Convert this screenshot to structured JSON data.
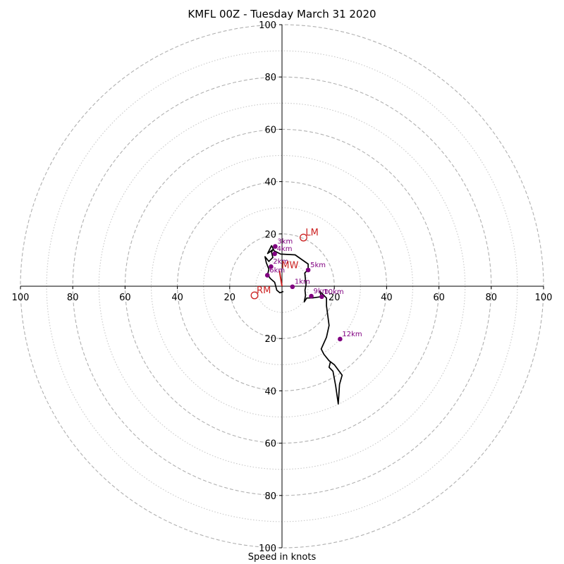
{
  "chart_data": {
    "type": "hodograph",
    "title": "KMFL 00Z - Tuesday March 31 2020",
    "xlabel": "Speed in knots",
    "ring_ticks": [
      "20",
      "40",
      "60",
      "80",
      "100"
    ],
    "xlim": [
      -100,
      100
    ],
    "ylim": [
      -100,
      100
    ],
    "grid": true,
    "hodograph_trace": [
      [
        0.5,
        -2
      ],
      [
        -0.8,
        -2.5
      ],
      [
        -2,
        -1.5
      ],
      [
        -2.8,
        1.5
      ],
      [
        -4.5,
        3
      ],
      [
        -5.5,
        4.5
      ],
      [
        -5,
        6.5
      ],
      [
        -6,
        9
      ],
      [
        -6.5,
        11.3
      ],
      [
        -5,
        9.5
      ],
      [
        -3.5,
        11
      ],
      [
        -4,
        13
      ],
      [
        -3.5,
        14
      ],
      [
        -5.5,
        12.5
      ],
      [
        -4,
        15.5
      ],
      [
        -3,
        13.5
      ],
      [
        -0.5,
        12.3
      ],
      [
        5,
        12
      ],
      [
        10,
        8.5
      ],
      [
        10,
        6.5
      ],
      [
        8.7,
        5
      ],
      [
        9.2,
        0.5
      ],
      [
        8.8,
        -1.5
      ],
      [
        9,
        -3.5
      ],
      [
        8.5,
        -6
      ],
      [
        9.5,
        -4.5
      ],
      [
        11.5,
        -4.5
      ],
      [
        15,
        -4
      ],
      [
        14.5,
        -2
      ],
      [
        17,
        -4.5
      ],
      [
        17,
        -7.5
      ],
      [
        18,
        -15
      ],
      [
        17,
        -19.5
      ],
      [
        15,
        -24
      ],
      [
        16,
        -26
      ],
      [
        18,
        -28.5
      ],
      [
        20,
        -30
      ],
      [
        23,
        -34
      ],
      [
        22,
        -37.5
      ],
      [
        21.5,
        -45
      ],
      [
        20.5,
        -38
      ],
      [
        19.5,
        -32.5
      ],
      [
        18,
        -31
      ],
      [
        18.5,
        -29
      ]
    ],
    "height_markers": [
      {
        "label": "1km",
        "u": 4,
        "v": -0.2
      },
      {
        "label": "2km",
        "u": -4.2,
        "v": 7.5
      },
      {
        "label": "3km",
        "u": -2.6,
        "v": 15.2
      },
      {
        "label": "4km",
        "u": -2.8,
        "v": 12.4
      },
      {
        "label": "5km",
        "u": 10,
        "v": 6.2
      },
      {
        "label": "6km",
        "u": -5.6,
        "v": 4.2
      },
      {
        "label": "9km",
        "u": 11.2,
        "v": -3.8
      },
      {
        "label": "10km",
        "u": 15.2,
        "v": -4
      },
      {
        "label": "12km",
        "u": 22.2,
        "v": -20.2
      }
    ],
    "motion_markers": [
      {
        "label": "LM",
        "u": 8.2,
        "v": 18.6
      },
      {
        "label": "RM",
        "u": -10.5,
        "v": -3.5
      },
      {
        "label": "MW",
        "u": -1,
        "v": 6
      }
    ],
    "mean_wind_vector": {
      "u": -1,
      "v": 6
    },
    "colors": {
      "trace": "#000000",
      "height_marker": "#800080",
      "motion_marker": "#cc2222",
      "ring_major": "#b0b0b0",
      "ring_minor": "#c8c8c8"
    }
  }
}
